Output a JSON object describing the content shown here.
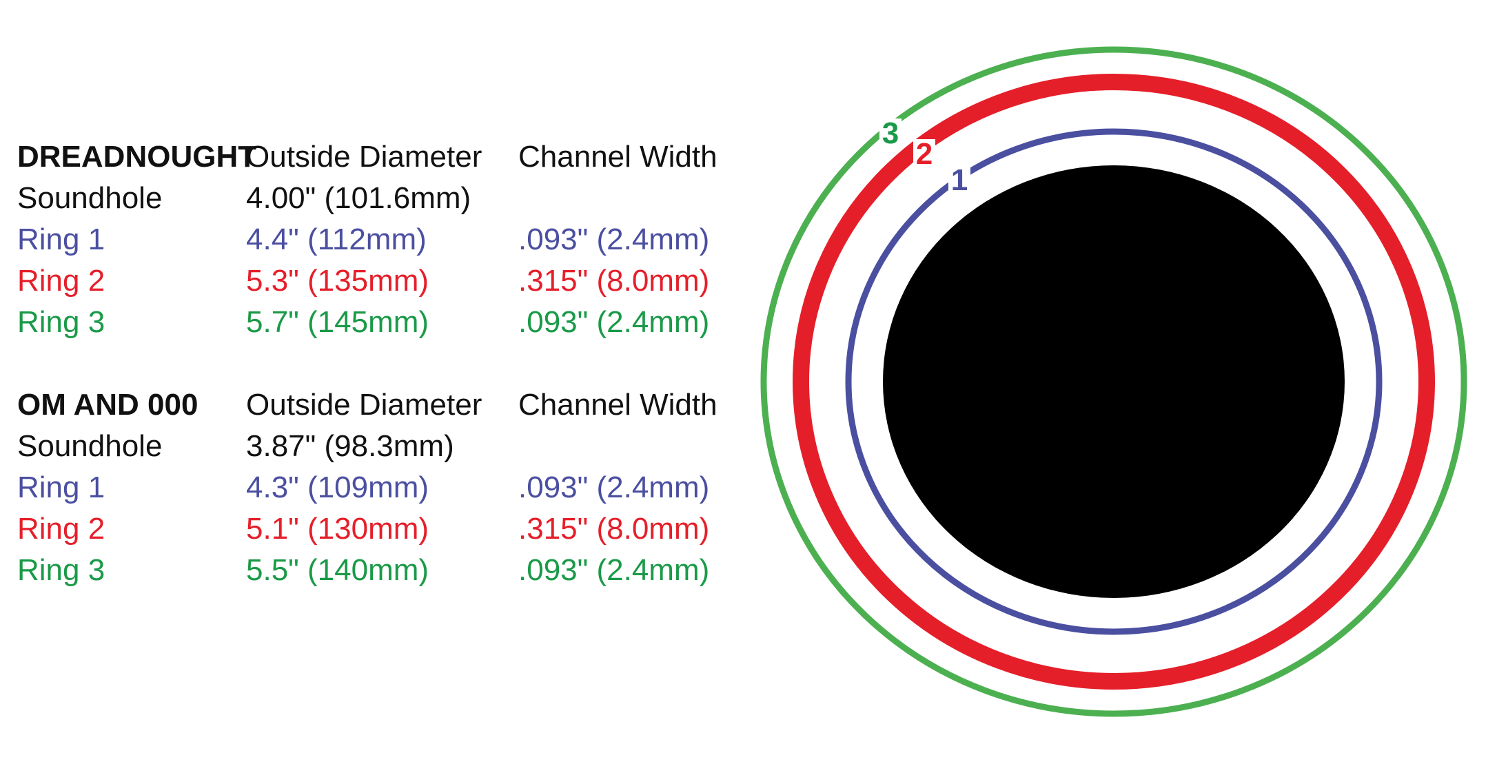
{
  "tables": [
    {
      "title": "DREADNOUGHT",
      "headers": [
        "Outside Diameter",
        "Channel Width"
      ],
      "rows": [
        [
          "Soundhole",
          "4.00\" (101.6mm)"
        ],
        [
          "Ring 1",
          "4.4\" (112mm)",
          ".093\" (2.4mm)"
        ],
        [
          "Ring 2",
          "5.3\" (135mm)",
          ".315\" (8.0mm)"
        ],
        [
          "Ring 3",
          "5.7\" (145mm)",
          ".093\" (2.4mm)"
        ]
      ]
    },
    {
      "title": "OM AND 000",
      "headers": [
        "Outside Diameter",
        "Channel Width"
      ],
      "rows": [
        [
          "Soundhole",
          "3.87\" (98.3mm)"
        ],
        [
          "Ring 1",
          "4.3\" (109mm)",
          ".093\" (2.4mm)"
        ],
        [
          "Ring 2",
          "5.1\" (130mm)",
          ".315\" (8.0mm)"
        ],
        [
          "Ring 3",
          "5.5\" (140mm)",
          ".093\" (2.4mm)"
        ]
      ]
    }
  ],
  "diagram": {
    "ring_labels": [
      "1",
      "2",
      "3"
    ]
  }
}
